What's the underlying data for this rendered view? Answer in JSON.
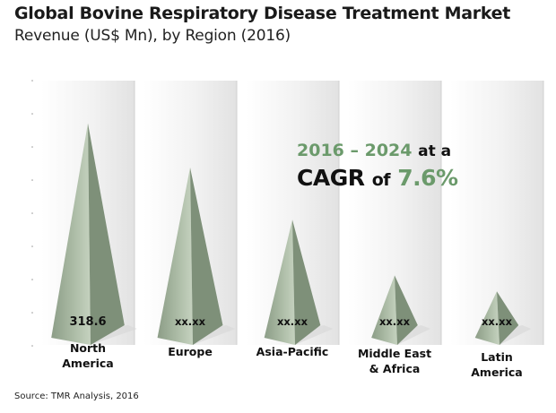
{
  "chart_data": {
    "type": "bar",
    "title": "Global Bovine Respiratory Disease Treatment Market",
    "subtitle": "Revenue (US$ Mn), by Region (2016)",
    "categories": [
      "North\nAmerica",
      "Europe",
      "Asia-Pacific",
      "Middle East\n& Africa",
      "Latin\nAmerica"
    ],
    "value_labels": [
      "318.6",
      "xx.xx",
      "xx.xx",
      "xx.xx",
      "xx.xx"
    ],
    "values": [
      318.6,
      255,
      180,
      100,
      77
    ],
    "ylim": [
      0,
      380
    ],
    "grid": false,
    "colors": {
      "pyramid": "#a8b8a2",
      "pyramid_shadow": "#7e9079",
      "panel": "#eeeeee"
    }
  },
  "callout": {
    "years": "2016 – 2024",
    "at_a": "at a",
    "cagr": "CAGR",
    "of": "of",
    "rate": "7.6%",
    "accent_color": "#6b9a6b"
  },
  "source": "Source: TMR Analysis, 2016"
}
